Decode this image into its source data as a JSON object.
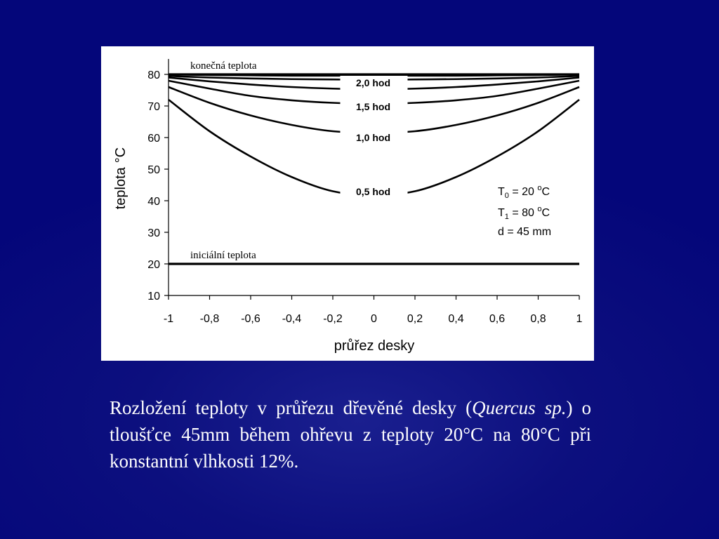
{
  "chart_data": {
    "type": "line",
    "xlabel": "průřez desky",
    "ylabel": "teplota",
    "ylabel_unit": "°C",
    "xlim": [
      -1,
      1
    ],
    "ylim": [
      10,
      80
    ],
    "x_ticks": [
      "-1",
      "-0,8",
      "-0,6",
      "-0,4",
      "-0,2",
      "0",
      "0,2",
      "0,4",
      "0,6",
      "0,8",
      "1"
    ],
    "y_ticks": [
      "10",
      "20",
      "30",
      "40",
      "50",
      "60",
      "70",
      "80"
    ],
    "grid": false,
    "annotations": {
      "final": "konečná teplota",
      "initial": "iniciální teplota"
    },
    "params": {
      "t0_label": "T",
      "t0_sub": "0",
      "t0_value": " = 20 ",
      "t0_unit_sup": "o",
      "t0_unit": "C",
      "t1_label": "T",
      "t1_sub": "1",
      "t1_value": " = 80 ",
      "t1_unit_sup": "o",
      "t1_unit": "C",
      "d_line": "d  = 45 mm"
    },
    "x": [
      -1,
      -0.8,
      -0.6,
      -0.4,
      -0.2,
      0,
      0.2,
      0.4,
      0.6,
      0.8,
      1
    ],
    "series": [
      {
        "name": "0,5 hod",
        "values": [
          72,
          62,
          54,
          47.5,
          43,
          41.8,
          43,
          47.5,
          54,
          62,
          72
        ]
      },
      {
        "name": "1,0 hod",
        "values": [
          76,
          71,
          67,
          64,
          62,
          61.5,
          62,
          64,
          67,
          71,
          76
        ]
      },
      {
        "name": "1,5 hod",
        "values": [
          78,
          75.5,
          73.2,
          71.8,
          71,
          70.7,
          71,
          71.8,
          73.2,
          75.5,
          78
        ]
      },
      {
        "name": "2,0 hod",
        "values": [
          79,
          77.8,
          76.8,
          76,
          75.5,
          75.3,
          75.5,
          76,
          76.8,
          77.8,
          79
        ]
      },
      {
        "values": [
          79.5,
          79,
          78.7,
          78.5,
          78.4,
          78.3,
          78.4,
          78.5,
          78.7,
          79,
          79.5
        ]
      },
      {
        "values": [
          80,
          79.8,
          79.7,
          79.6,
          79.6,
          79.6,
          79.6,
          79.6,
          79.7,
          79.8,
          80
        ]
      },
      {
        "values": [
          80,
          80,
          80,
          80,
          80,
          80,
          80,
          80,
          80,
          80,
          80
        ]
      },
      {
        "values": [
          20,
          20,
          20,
          20,
          20,
          20,
          20,
          20,
          20,
          20,
          20
        ]
      }
    ]
  },
  "caption": {
    "part1": "Rozložení teploty v průřezu dřevěné desky (",
    "italic": "Quercus sp.",
    "part2": ") o tloušťce 45mm během ohřevu z teploty 20°C na 80°C při konstantní vlhkosti 12%."
  }
}
